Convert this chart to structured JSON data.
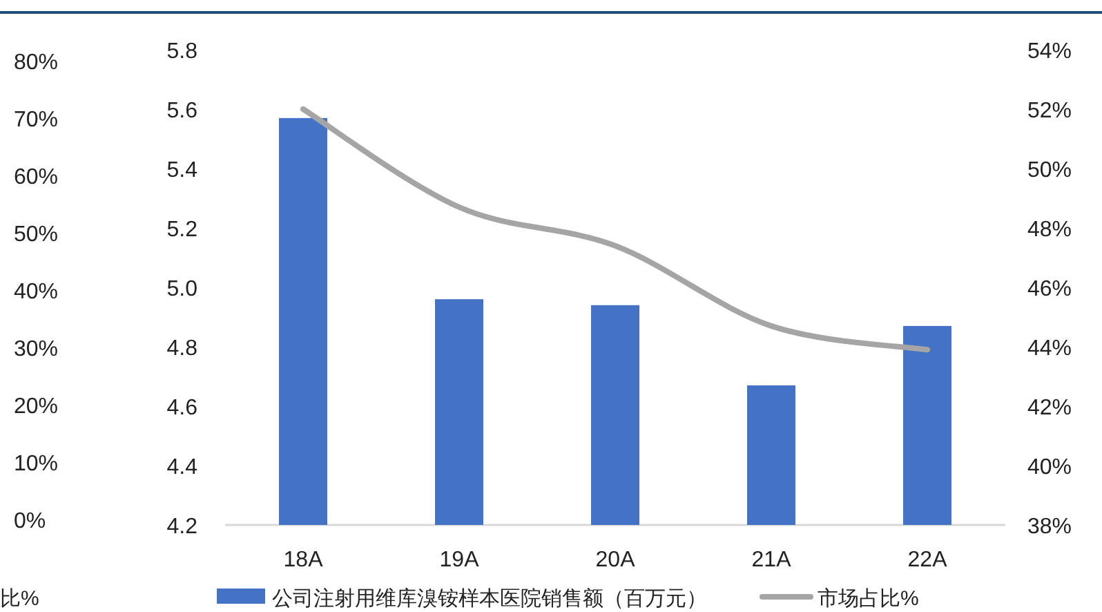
{
  "chart_data": {
    "type": "bar",
    "categories": [
      "18A",
      "19A",
      "20A",
      "21A",
      "22A"
    ],
    "series": [
      {
        "name": "公司注射用维库溴铵样本医院销售额（百万元）",
        "color": "#4472c4",
        "values": [
          5.57,
          4.96,
          4.94,
          4.67,
          4.87
        ]
      },
      {
        "name": "市场占比%",
        "type": "line",
        "axis": "y2",
        "color": "#a5a5a5",
        "values": [
          52.0,
          48.7,
          47.4,
          44.7,
          43.9
        ]
      }
    ],
    "ylim": [
      4.2,
      5.8
    ],
    "yticks": [
      4.2,
      4.4,
      4.6,
      4.8,
      {
        "value": 5.0,
        "label": "5.0"
      },
      5.2,
      5.4,
      5.6,
      5.8
    ],
    "y2lim": [
      38,
      54
    ],
    "y2ticks": [
      {
        "value": 38,
        "label": "38%"
      },
      {
        "value": 40,
        "label": "40%"
      },
      {
        "value": 42,
        "label": "42%"
      },
      {
        "value": 44,
        "label": "44%"
      },
      {
        "value": 46,
        "label": "46%"
      },
      {
        "value": 48,
        "label": "48%"
      },
      {
        "value": 50,
        "label": "50%"
      },
      {
        "value": 52,
        "label": "52%"
      },
      {
        "value": 54,
        "label": "54%"
      }
    ],
    "y3lim": [
      0,
      80
    ],
    "y3ticks": [
      {
        "value": 0,
        "label": "0%"
      },
      {
        "value": 10,
        "label": "10%"
      },
      {
        "value": 20,
        "label": "20%"
      },
      {
        "value": 30,
        "label": "30%"
      },
      {
        "value": 40,
        "label": "40%"
      },
      {
        "value": 50,
        "label": "50%"
      },
      {
        "value": 60,
        "label": "60%"
      },
      {
        "value": 70,
        "label": "70%"
      },
      {
        "value": 80,
        "label": "80%"
      }
    ],
    "annotations": [
      "比%"
    ],
    "legend": "bottom",
    "grid": false,
    "marker": "none",
    "line_style": "solid"
  }
}
